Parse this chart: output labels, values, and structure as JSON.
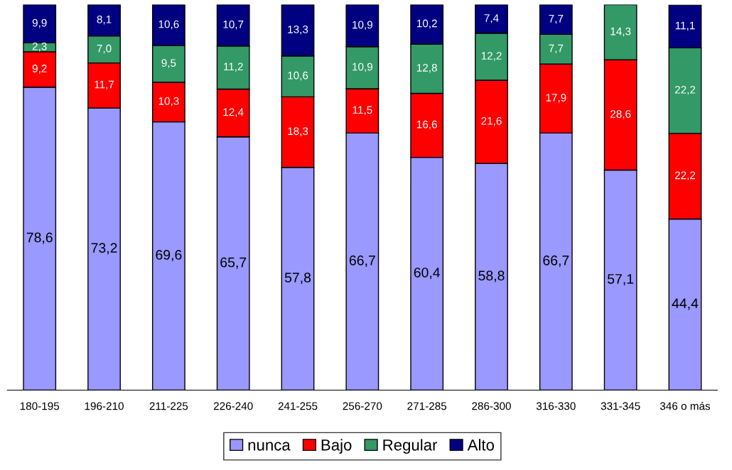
{
  "chart_data": {
    "type": "bar",
    "stacked": true,
    "legend": "bottom",
    "grid": false,
    "categories": [
      "180-195",
      "196-210",
      "211-225",
      "226-240",
      "241-255",
      "256-270",
      "271-285",
      "286-300",
      "316-330",
      "331-345",
      "346 o más"
    ],
    "series": [
      {
        "name": "nunca",
        "color": "#9999ff",
        "values": [
          78.6,
          73.2,
          69.6,
          65.7,
          57.8,
          66.7,
          60.4,
          58.8,
          66.7,
          57.1,
          44.4
        ],
        "value_labels": [
          "78,6",
          "73,2",
          "69,6",
          "65,7",
          "57,8",
          "66,7",
          "60,4",
          "58,8",
          "66,7",
          "57,1",
          "44,4"
        ]
      },
      {
        "name": "Bajo",
        "color": "#ff0000",
        "values": [
          9.2,
          11.7,
          10.3,
          12.4,
          18.3,
          11.5,
          16.6,
          21.6,
          17.9,
          28.6,
          22.2
        ],
        "value_labels": [
          "9,2",
          "11,7",
          "10,3",
          "12,4",
          "18,3",
          "11,5",
          "16,6",
          "21,6",
          "17,9",
          "28,6",
          "22,2"
        ]
      },
      {
        "name": "Regular",
        "color": "#339966",
        "values": [
          2.3,
          7.0,
          9.5,
          11.2,
          10.6,
          10.9,
          12.8,
          12.2,
          7.7,
          14.3,
          22.2
        ],
        "value_labels": [
          "2,3",
          "7,0",
          "9,5",
          "11,2",
          "10,6",
          "10,9",
          "12,8",
          "12,2",
          "7,7",
          "14,3",
          "22,2"
        ]
      },
      {
        "name": "Alto",
        "color": "#000080",
        "values": [
          9.9,
          8.1,
          10.6,
          10.7,
          13.3,
          10.9,
          10.2,
          7.4,
          7.7,
          null,
          11.1
        ],
        "value_labels": [
          "9,9",
          "8,1",
          "10,6",
          "10,7",
          "13,3",
          "10,9",
          "10,2",
          "7,4",
          "7,7",
          null,
          "11,1"
        ]
      }
    ]
  }
}
